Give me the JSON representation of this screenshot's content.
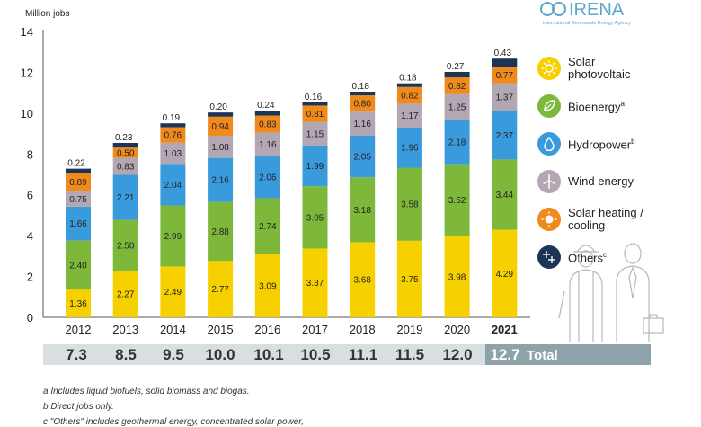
{
  "chart_data": {
    "type": "bar",
    "stacked": true,
    "y_unit_label": "Million jobs",
    "ylim": [
      0,
      14
    ],
    "yticks": [
      0,
      2,
      4,
      6,
      8,
      10,
      12,
      14
    ],
    "categories": [
      "2012",
      "2013",
      "2014",
      "2015",
      "2016",
      "2017",
      "2018",
      "2019",
      "2020",
      "2021"
    ],
    "highlight_category": "2021",
    "series": [
      {
        "name": "Solar photovoltaic",
        "color": "#f7d000",
        "values": [
          1.36,
          2.27,
          2.49,
          2.77,
          3.09,
          3.37,
          3.68,
          3.75,
          3.98,
          4.29
        ]
      },
      {
        "name": "Bioenergy",
        "color": "#7db83a",
        "values": [
          2.4,
          2.5,
          2.99,
          2.88,
          2.74,
          3.05,
          3.18,
          3.58,
          3.52,
          3.44
        ]
      },
      {
        "name": "Hydropower",
        "color": "#3a9bdc",
        "values": [
          1.66,
          2.21,
          2.04,
          2.16,
          2.06,
          1.99,
          2.05,
          1.96,
          2.18,
          2.37
        ]
      },
      {
        "name": "Wind energy",
        "color": "#b3a7b3",
        "values": [
          0.75,
          0.83,
          1.03,
          1.08,
          1.16,
          1.15,
          1.16,
          1.17,
          1.25,
          1.37
        ]
      },
      {
        "name": "Solar heating / cooling",
        "color": "#f08a1c",
        "values": [
          0.89,
          0.5,
          0.76,
          0.94,
          0.83,
          0.81,
          0.8,
          0.82,
          0.82,
          0.77
        ]
      },
      {
        "name": "Others",
        "color": "#1c3557",
        "values": [
          0.22,
          0.23,
          0.19,
          0.2,
          0.24,
          0.16,
          0.18,
          0.18,
          0.27,
          0.43
        ]
      }
    ],
    "totals": [
      "7.3",
      "8.5",
      "9.5",
      "10.0",
      "10.1",
      "10.5",
      "11.1",
      "11.5",
      "12.0",
      "12.7"
    ],
    "totals_label": "Total"
  },
  "logo": {
    "name": "IRENA",
    "tagline": "International Renewable Energy Agency"
  },
  "legend": [
    {
      "line1": "Solar",
      "line2": "photovoltaic",
      "sup": "",
      "icon": "sun-icon",
      "color": "#f7d000"
    },
    {
      "line1": "Bioenergy",
      "line2": "",
      "sup": "a",
      "icon": "leaf-icon",
      "color": "#7db83a"
    },
    {
      "line1": "Hydropower",
      "line2": "",
      "sup": "b",
      "icon": "water-drop-icon",
      "color": "#3a9bdc"
    },
    {
      "line1": "Wind energy",
      "line2": "",
      "sup": "",
      "icon": "wind-turbine-icon",
      "color": "#b3a7b3"
    },
    {
      "line1": "Solar heating /",
      "line2": "cooling",
      "sup": "",
      "icon": "sun-heat-icon",
      "color": "#f08a1c"
    },
    {
      "line1": "Others",
      "line2": "",
      "sup": "c",
      "icon": "plus-icon",
      "color": "#1c3557"
    }
  ],
  "footnotes": {
    "a": "a  Includes liquid biofuels, solid biomass and biogas.",
    "b": "b  Direct jobs only.",
    "c": "c  \"Others\" includes geothermal energy, concentrated solar power,"
  }
}
